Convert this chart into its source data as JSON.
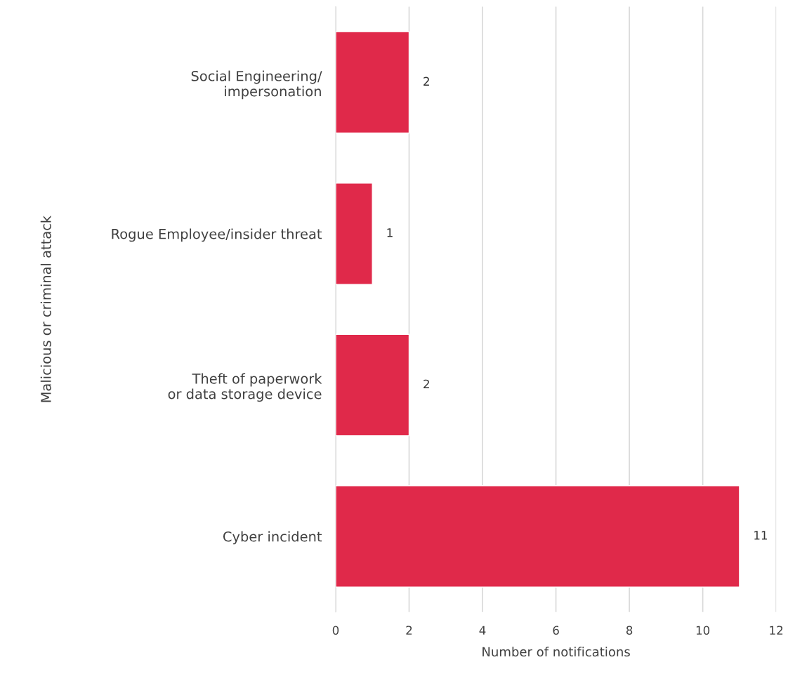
{
  "chart_data": {
    "type": "bar",
    "orientation": "horizontal",
    "ylabel": "Malicious or criminal attack",
    "xlabel": "Number of notifications",
    "categories": [
      "Social Engineering/\nimpersonation",
      "Rogue Employee/insider threat",
      "Theft of paperwork\nor data storage device",
      "Cyber incident"
    ],
    "values": [
      2,
      1,
      2,
      11
    ],
    "color": "#e0294a",
    "xlim": [
      0,
      12
    ],
    "xticks": [
      0,
      2,
      4,
      6,
      8,
      10,
      12
    ],
    "grid": "x",
    "data_labels": true,
    "legend": false
  }
}
